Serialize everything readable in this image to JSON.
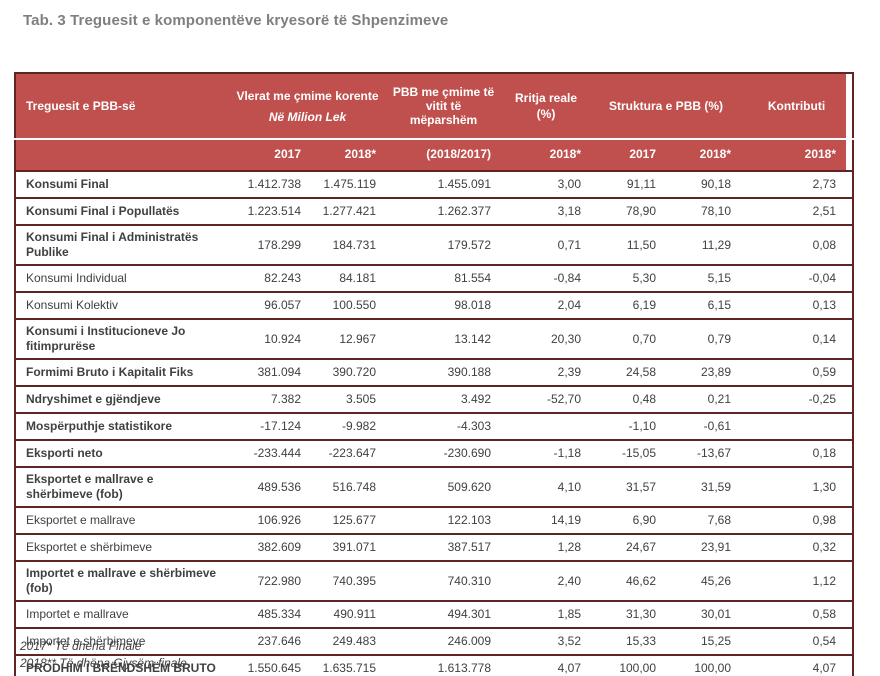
{
  "title": "Tab. 3 Treguesit e komponentëve kryesorë të Shpenzimeve",
  "colors": {
    "header_bg": "#c0504d",
    "border": "#622423",
    "title_text": "#7f7f7f",
    "body_text": "#404040"
  },
  "table": {
    "header": {
      "indicator": "Treguesit e PBB-së",
      "current_prices_line1": "Vlerat me çmime korente",
      "current_prices_line2": "Në Milion Lek",
      "prev_year_prices": "PBB me çmime të vitit të mëparshëm",
      "real_growth_line1": "Rritja reale",
      "real_growth_line2": "(%)",
      "structure": "Struktura e PBB  (%)",
      "contribution": "Kontributi",
      "sub": {
        "col1": "2017",
        "col2": "2018*",
        "col3": "(2018/2017)",
        "col4": "2018*",
        "col5": "2017",
        "col6": "2018*",
        "col7": "2018*"
      }
    },
    "rows": [
      {
        "label": "Konsumi Final",
        "bold": true,
        "values": [
          "1.412.738",
          "1.475.119",
          "1.455.091",
          "3,00",
          "91,11",
          "90,18",
          "2,73"
        ]
      },
      {
        "label": "Konsumi Final i Popullatës",
        "bold": true,
        "values": [
          "1.223.514",
          "1.277.421",
          "1.262.377",
          "3,18",
          "78,90",
          "78,10",
          "2,51"
        ]
      },
      {
        "label": "Konsumi Final i Administratës Publike",
        "bold": true,
        "values": [
          "178.299",
          "184.731",
          "179.572",
          "0,71",
          "11,50",
          "11,29",
          "0,08"
        ]
      },
      {
        "label": "Konsumi Individual",
        "bold": false,
        "values": [
          "82.243",
          "84.181",
          "81.554",
          "-0,84",
          "5,30",
          "5,15",
          "-0,04"
        ]
      },
      {
        "label": "Konsumi Kolektiv",
        "bold": false,
        "values": [
          "96.057",
          "100.550",
          "98.018",
          "2,04",
          "6,19",
          "6,15",
          "0,13"
        ]
      },
      {
        "label": "Konsumi i Institucioneve Jo fitimprurëse",
        "bold": true,
        "values": [
          "10.924",
          "12.967",
          "13.142",
          "20,30",
          "0,70",
          "0,79",
          "0,14"
        ]
      },
      {
        "label": "Formimi Bruto i Kapitalit Fiks",
        "bold": true,
        "values": [
          "381.094",
          "390.720",
          "390.188",
          "2,39",
          "24,58",
          "23,89",
          "0,59"
        ]
      },
      {
        "label": "Ndryshimet e gjëndjeve",
        "bold": true,
        "values": [
          "7.382",
          "3.505",
          "3.492",
          "-52,70",
          "0,48",
          "0,21",
          "-0,25"
        ]
      },
      {
        "label": "Mospërputhje statistikore",
        "bold": true,
        "values": [
          "-17.124",
          "-9.982",
          "-4.303",
          "",
          "-1,10",
          "-0,61",
          ""
        ]
      },
      {
        "label": "Eksporti neto",
        "bold": true,
        "values": [
          "-233.444",
          "-223.647",
          "-230.690",
          "-1,18",
          "-15,05",
          "-13,67",
          "0,18"
        ]
      },
      {
        "label": "Eksportet e mallrave e shërbimeve (fob)",
        "bold": true,
        "values": [
          "489.536",
          "516.748",
          "509.620",
          "4,10",
          "31,57",
          "31,59",
          "1,30"
        ]
      },
      {
        "label": "Eksportet e mallrave",
        "bold": false,
        "values": [
          "106.926",
          "125.677",
          "122.103",
          "14,19",
          "6,90",
          "7,68",
          "0,98"
        ]
      },
      {
        "label": "Eksportet e shërbimeve",
        "bold": false,
        "values": [
          "382.609",
          "391.071",
          "387.517",
          "1,28",
          "24,67",
          "23,91",
          "0,32"
        ]
      },
      {
        "label": "Importet e mallrave e shërbimeve (fob)",
        "bold": true,
        "values": [
          "722.980",
          "740.395",
          "740.310",
          "2,40",
          "46,62",
          "45,26",
          "1,12"
        ]
      },
      {
        "label": "Importet e mallrave",
        "bold": false,
        "values": [
          "485.334",
          "490.911",
          "494.301",
          "1,85",
          "31,30",
          "30,01",
          "0,58"
        ]
      },
      {
        "label": "Importet e shërbimeve",
        "bold": false,
        "values": [
          "237.646",
          "249.483",
          "246.009",
          "3,52",
          "15,33",
          "15,25",
          "0,54"
        ]
      },
      {
        "label": "PRODHIM I BRËNDSHËM BRUTO",
        "bold": true,
        "values": [
          "1.550.645",
          "1.635.715",
          "1.613.778",
          "4,07",
          "100,00",
          "100,00",
          "4,07"
        ]
      }
    ]
  },
  "footnotes": {
    "note1": "2017* Të dhëna Finale",
    "note2": "2018** Të dhëna Gjysëm-finale"
  }
}
